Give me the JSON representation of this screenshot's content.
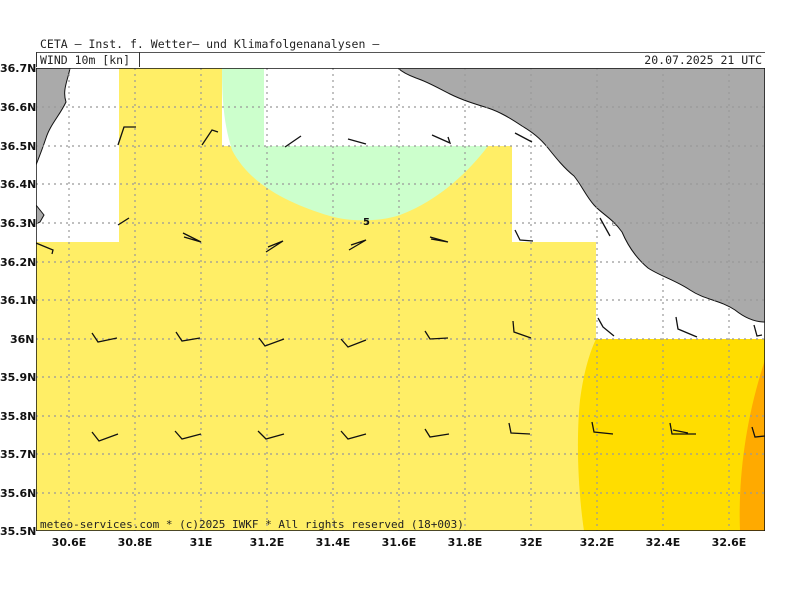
{
  "header": {
    "title": "CETA — Inst. f. Wetter— und Klimafolgenanalysen —",
    "parameter": "WIND 10m [kn]",
    "datetime": "20.07.2025 21 UTC"
  },
  "footer": {
    "copyright": "meteo-services.com * (c)2025 IWKF * All rights reserved (18+003)"
  },
  "map": {
    "lat_labels": [
      "36.7N",
      "36.6N",
      "36.5N",
      "36.4N",
      "36.3N",
      "36.2N",
      "36.1N",
      "36N",
      "35.9N",
      "35.8N",
      "35.7N",
      "35.6N",
      "35.5N"
    ],
    "lon_labels": [
      "30.6E",
      "30.8E",
      "31E",
      "31.2E",
      "31.4E",
      "31.6E",
      "31.8E",
      "32E",
      "32.2E",
      "32.4E",
      "32.6E"
    ],
    "contour_label": "5",
    "colors": {
      "land": "#aaaaaa",
      "sea_calm": "#ffffff",
      "wind_light_green": "#ccffcc",
      "wind_yellow": "#ffee66",
      "wind_gold": "#ffdd00",
      "wind_orange": "#ffaa00",
      "grid": "#999999",
      "barb": "#111111"
    }
  }
}
